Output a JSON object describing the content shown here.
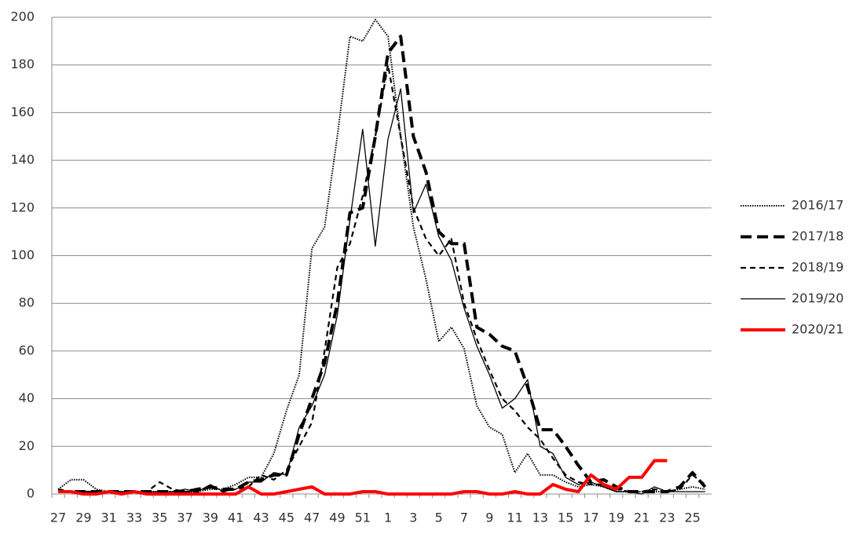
{
  "chart_data": {
    "type": "line",
    "categories": [
      "27",
      null,
      "29",
      null,
      "31",
      null,
      "33",
      null,
      "35",
      null,
      "37",
      null,
      "39",
      null,
      "41",
      null,
      "43",
      null,
      "45",
      null,
      "47",
      null,
      "49",
      null,
      "51",
      null,
      "1",
      null,
      "3",
      null,
      "5",
      null,
      "7",
      null,
      "9",
      null,
      "11",
      null,
      "13",
      null,
      "15",
      null,
      "17",
      null,
      "19",
      null,
      "21",
      null,
      "23",
      null,
      "25",
      null
    ],
    "series": [
      {
        "name": "2016/17",
        "color": "#000000",
        "line_style": "dotted",
        "values": [
          2,
          6,
          6,
          2,
          1,
          1,
          1,
          1,
          1,
          1,
          1,
          1,
          2,
          2,
          4,
          7,
          7,
          17,
          35,
          50,
          103,
          112,
          150,
          192,
          190,
          199,
          192,
          150,
          112,
          90,
          64,
          70,
          61,
          37,
          28,
          25,
          9,
          17,
          8,
          8,
          5,
          3,
          4,
          3,
          1,
          1,
          1,
          1,
          1,
          2,
          3,
          2
        ]
      },
      {
        "name": "2017/18",
        "color": "#000000",
        "line_style": "dashed",
        "values": [
          1,
          1,
          1,
          1,
          1,
          1,
          1,
          1,
          1,
          1,
          1,
          2,
          3,
          2,
          2,
          5,
          6,
          8,
          8,
          25,
          40,
          55,
          80,
          118,
          120,
          150,
          185,
          192,
          150,
          135,
          110,
          105,
          105,
          70,
          67,
          62,
          60,
          45,
          27,
          27,
          20,
          12,
          5,
          6,
          3,
          1,
          1,
          1,
          1,
          3,
          9,
          3
        ]
      },
      {
        "name": "2018/19",
        "color": "#000000",
        "line_style": "short-dashed",
        "values": [
          2,
          1,
          1,
          1,
          1,
          1,
          1,
          1,
          5,
          2,
          1,
          1,
          3,
          1,
          2,
          3,
          8,
          6,
          10,
          20,
          30,
          60,
          95,
          105,
          125,
          150,
          180,
          150,
          120,
          107,
          100,
          107,
          80,
          65,
          52,
          40,
          35,
          28,
          23,
          15,
          8,
          5,
          4,
          4,
          2,
          1,
          1,
          2,
          1,
          2,
          8,
          4
        ]
      },
      {
        "name": "2019/20",
        "color": "#000000",
        "line_style": "solid",
        "values": [
          1,
          1,
          1,
          1,
          1,
          1,
          1,
          1,
          1,
          1,
          2,
          1,
          4,
          1,
          2,
          5,
          5,
          9,
          8,
          28,
          37,
          50,
          75,
          115,
          153,
          104,
          149,
          170,
          118,
          130,
          108,
          98,
          78,
          62,
          50,
          36,
          40,
          48,
          20,
          17,
          7,
          4,
          5,
          3,
          1,
          1,
          0,
          3,
          1,
          1,
          1,
          1
        ]
      },
      {
        "name": "2020/21",
        "color": "#ff0000",
        "line_style": "thick",
        "values": [
          1,
          1,
          0,
          0,
          1,
          0,
          1,
          0,
          0,
          0,
          0,
          0,
          0,
          0,
          0,
          3,
          0,
          0,
          1,
          2,
          3,
          0,
          0,
          0,
          1,
          1,
          0,
          0,
          0,
          0,
          0,
          0,
          1,
          1,
          0,
          0,
          1,
          0,
          0,
          4,
          2,
          1,
          8,
          4,
          2,
          7,
          7,
          14,
          14,
          null,
          null,
          null
        ]
      }
    ],
    "ylim": [
      0,
      200
    ],
    "yticks": [
      0,
      20,
      40,
      60,
      80,
      100,
      120,
      140,
      160,
      180,
      200
    ],
    "grid": true,
    "legend": "right"
  }
}
